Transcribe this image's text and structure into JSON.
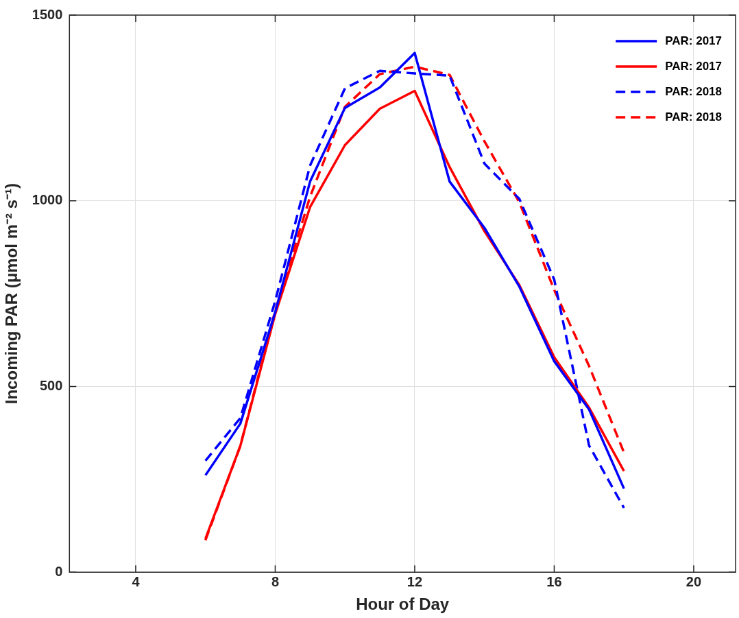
{
  "chart_data": {
    "type": "line",
    "xlabel": "Hour of Day",
    "ylabel": "Incoming PAR (μmol m⁻² s⁻¹)",
    "x": [
      6,
      7,
      8,
      9,
      10,
      11,
      12,
      13,
      14,
      15,
      16,
      17,
      18
    ],
    "xlim": [
      2.1,
      21.2
    ],
    "xticks": [
      4,
      8,
      12,
      16,
      20
    ],
    "ylim": [
      0,
      1500
    ],
    "yticks": [
      0,
      500,
      1000,
      1500
    ],
    "grid": true,
    "legend": "top right",
    "series": [
      {
        "name": "PAR: 2017",
        "color": "#0000ff",
        "line_style": "solid",
        "values": [
          261,
          400,
          700,
          1052,
          1250,
          1305,
          1398,
          1052,
          927,
          769,
          568,
          438,
          225
        ]
      },
      {
        "name": "PAR: 2017",
        "color": "#ff0000",
        "line_style": "solid",
        "values": [
          90,
          340,
          695,
          983,
          1150,
          1248,
          1296,
          1091,
          918,
          773,
          579,
          443,
          272
        ]
      },
      {
        "name": "PAR: 2018",
        "color": "#0000ff",
        "line_style": "dashed",
        "values": [
          300,
          415,
          730,
          1095,
          1303,
          1350,
          1343,
          1337,
          1100,
          1005,
          788,
          341,
          173
        ]
      },
      {
        "name": "PAR: 2018",
        "color": "#ff0000",
        "line_style": "dashed",
        "values": [
          86,
          340,
          704,
          1011,
          1253,
          1341,
          1361,
          1339,
          1160,
          996,
          760,
          555,
          322
        ]
      }
    ]
  }
}
